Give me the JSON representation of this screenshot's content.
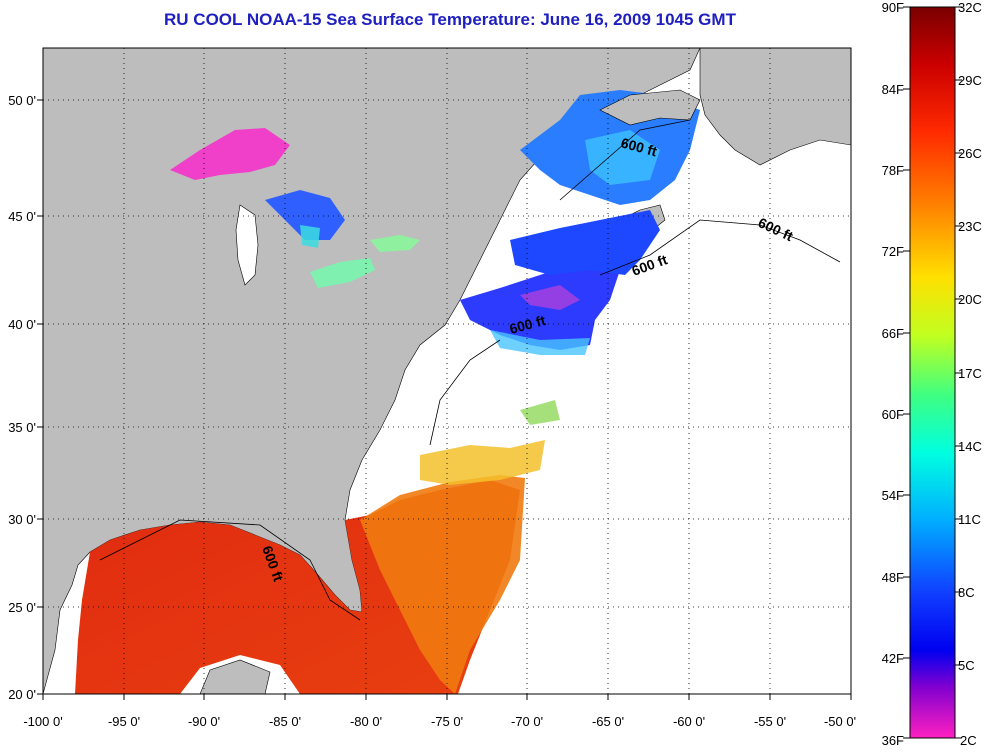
{
  "title": "RU COOL  NOAA-15  Sea Surface Temperature:  June 16, 2009 1045 GMT",
  "colors": {
    "title": "#1f1fbf",
    "land": "#bdbdbd",
    "cloud": "#ffffff"
  },
  "map": {
    "x_ticks": [
      "-100 0'",
      "-95 0'",
      "-90 0'",
      "-85 0'",
      "-80 0'",
      "-75 0'",
      "-70 0'",
      "-65 0'",
      "-60 0'",
      "-55 0'",
      "-50 0'"
    ],
    "y_ticks": [
      "20 0'",
      "25 0'",
      "30 0'",
      "35 0'",
      "40 0'",
      "45 0'",
      "50 0'"
    ],
    "contour_labels": [
      "600 ft",
      "600 ft",
      "600 ft",
      "600 ft",
      "600 ft"
    ]
  },
  "colorbar": {
    "fahrenheit": [
      "90F",
      "84F",
      "78F",
      "72F",
      "66F",
      "60F",
      "54F",
      "48F",
      "42F",
      "36F"
    ],
    "celsius": [
      "32C",
      "29C",
      "26C",
      "23C",
      "20C",
      "17C",
      "14C",
      "11C",
      "8C",
      "5C",
      "2C"
    ]
  }
}
